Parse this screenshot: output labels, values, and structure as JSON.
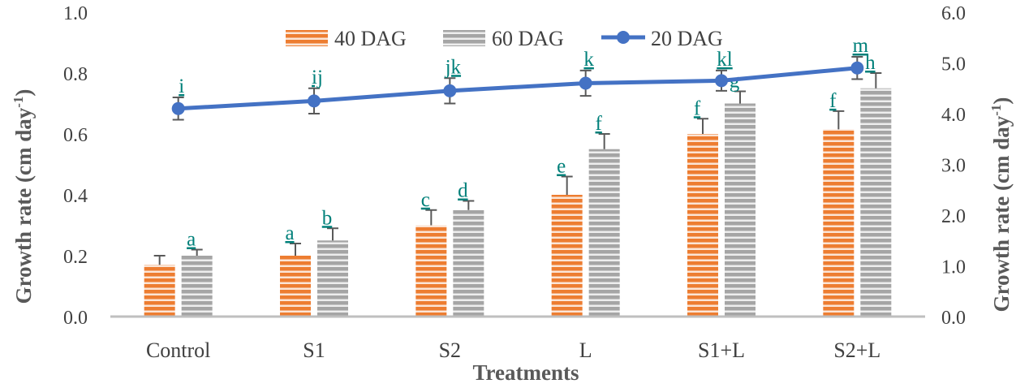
{
  "chart_data": {
    "type": "bar+line",
    "xlabel": "Treatments",
    "ylabel_left": "Growth rate  (cm day",
    "ylabel_left_sup": "-1",
    "ylabel_left_end": ")",
    "ylabel_right": "Growth rate (cm day",
    "ylabel_right_sup": "-1",
    "ylabel_right_end": ")",
    "categories": [
      "Control",
      "S1",
      "S2",
      "L",
      "S1+L",
      "S2+L"
    ],
    "ylim_left": [
      0,
      1.0
    ],
    "yticks_left": [
      "0.0",
      "0.2",
      "0.4",
      "0.6",
      "0.8",
      "1.0"
    ],
    "ylim_right": [
      0,
      6.0
    ],
    "yticks_right": [
      "0.0",
      "1.0",
      "2.0",
      "3.0",
      "4.0",
      "5.0",
      "6.0"
    ],
    "legend_position": "top-center",
    "series": [
      {
        "name": "40 DAG",
        "axis": "left",
        "kind": "bar",
        "color": "#ed7d31",
        "values": [
          0.17,
          0.2,
          0.3,
          0.4,
          0.6,
          0.615
        ],
        "errors": [
          0.03,
          0.04,
          0.05,
          0.06,
          0.05,
          0.06
        ],
        "letters": [
          "",
          "a",
          "c",
          "e",
          "f",
          "f"
        ]
      },
      {
        "name": "60 DAG",
        "axis": "left",
        "kind": "bar",
        "color": "#a5a5a5",
        "values": [
          0.2,
          0.25,
          0.35,
          0.55,
          0.7,
          0.75
        ],
        "errors": [
          0.02,
          0.04,
          0.03,
          0.05,
          0.04,
          0.05
        ],
        "letters": [
          "a",
          "b",
          "d",
          "f",
          "g",
          "h"
        ]
      },
      {
        "name": "20 DAG",
        "axis": "right",
        "kind": "line",
        "color": "#4472c4",
        "values": [
          4.1,
          4.25,
          4.45,
          4.6,
          4.65,
          4.9
        ],
        "errors": [
          0.22,
          0.25,
          0.25,
          0.25,
          0.2,
          0.22
        ],
        "letters": [
          "i",
          "ij",
          "jk",
          "k",
          "kl",
          "m"
        ]
      }
    ]
  }
}
